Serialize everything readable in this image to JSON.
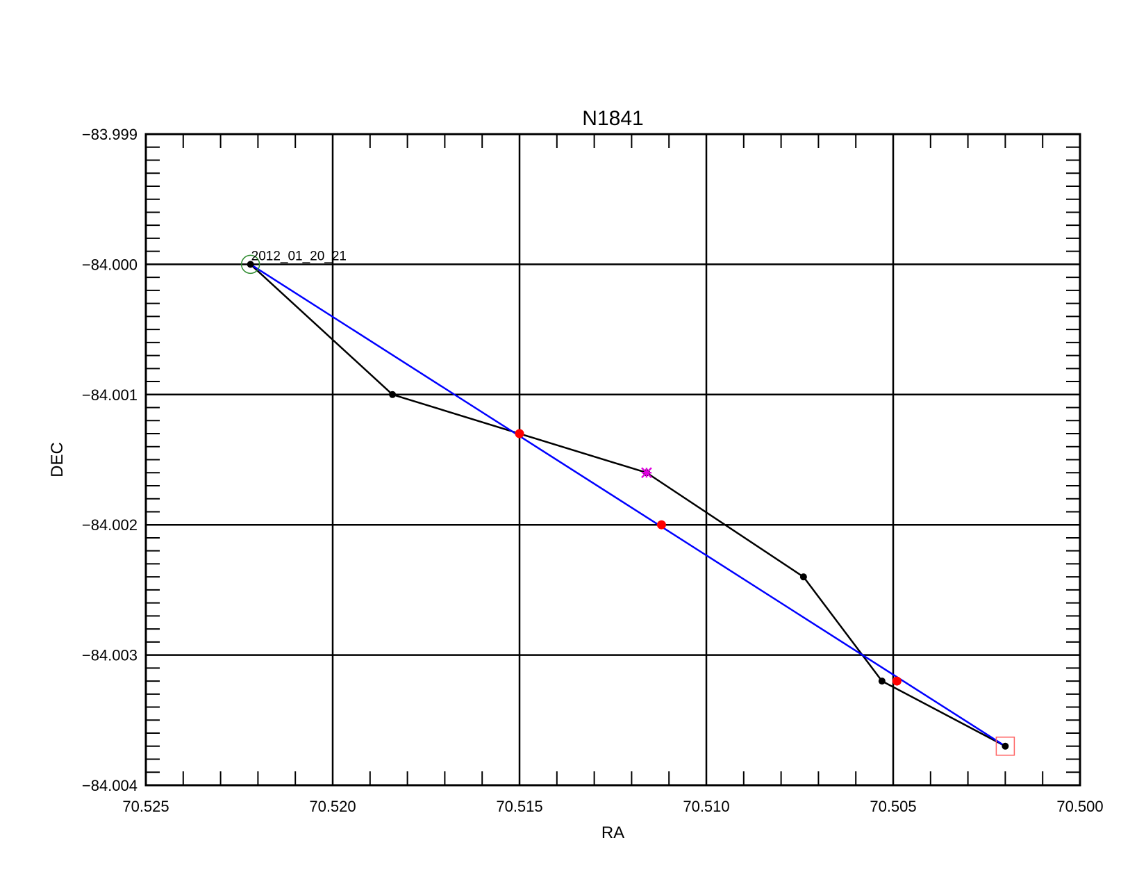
{
  "chart_data": {
    "type": "line",
    "title": "N1841",
    "xlabel": "RA",
    "ylabel": "DEC",
    "xlim": [
      70.525,
      70.5
    ],
    "ylim": [
      -84.004,
      -83.999
    ],
    "x_reversed": true,
    "grid": true,
    "x_ticks": [
      "70.525",
      "70.520",
      "70.515",
      "70.510",
      "70.505",
      "70.500"
    ],
    "y_ticks": [
      "-83.999",
      "-84.000",
      "-84.001",
      "-84.002",
      "-84.003",
      "-84.004"
    ],
    "series": [
      {
        "color": "#000000",
        "marker": "dot",
        "x": [
          70.5222,
          70.5184,
          70.5116,
          70.5074,
          70.5053,
          70.502
        ],
        "y": [
          -84.0,
          -84.001,
          -84.0016,
          -84.0024,
          -84.0032,
          -84.0037
        ]
      },
      {
        "color": "#0000ff",
        "marker": "none",
        "x": [
          70.5222,
          70.502
        ],
        "y": [
          -84.0,
          -84.0037
        ]
      },
      {
        "color": "#ff0000",
        "marker": "dot",
        "line": false,
        "x": [
          70.515,
          70.5112,
          70.5049
        ],
        "y": [
          -84.0013,
          -84.002,
          -84.0032
        ]
      }
    ],
    "special_markers": [
      {
        "shape": "open-circle",
        "color": "#2e8b2e",
        "x": 70.5222,
        "y": -84.0
      },
      {
        "shape": "open-square",
        "color": "#ff6060",
        "x": 70.502,
        "y": -84.0037
      },
      {
        "shape": "asterisk",
        "color": "#e000e0",
        "x": 70.5116,
        "y": -84.0016
      }
    ],
    "annotations": [
      {
        "text": "2012_01_20_21",
        "x": 70.5222,
        "y": -84.0
      }
    ]
  }
}
